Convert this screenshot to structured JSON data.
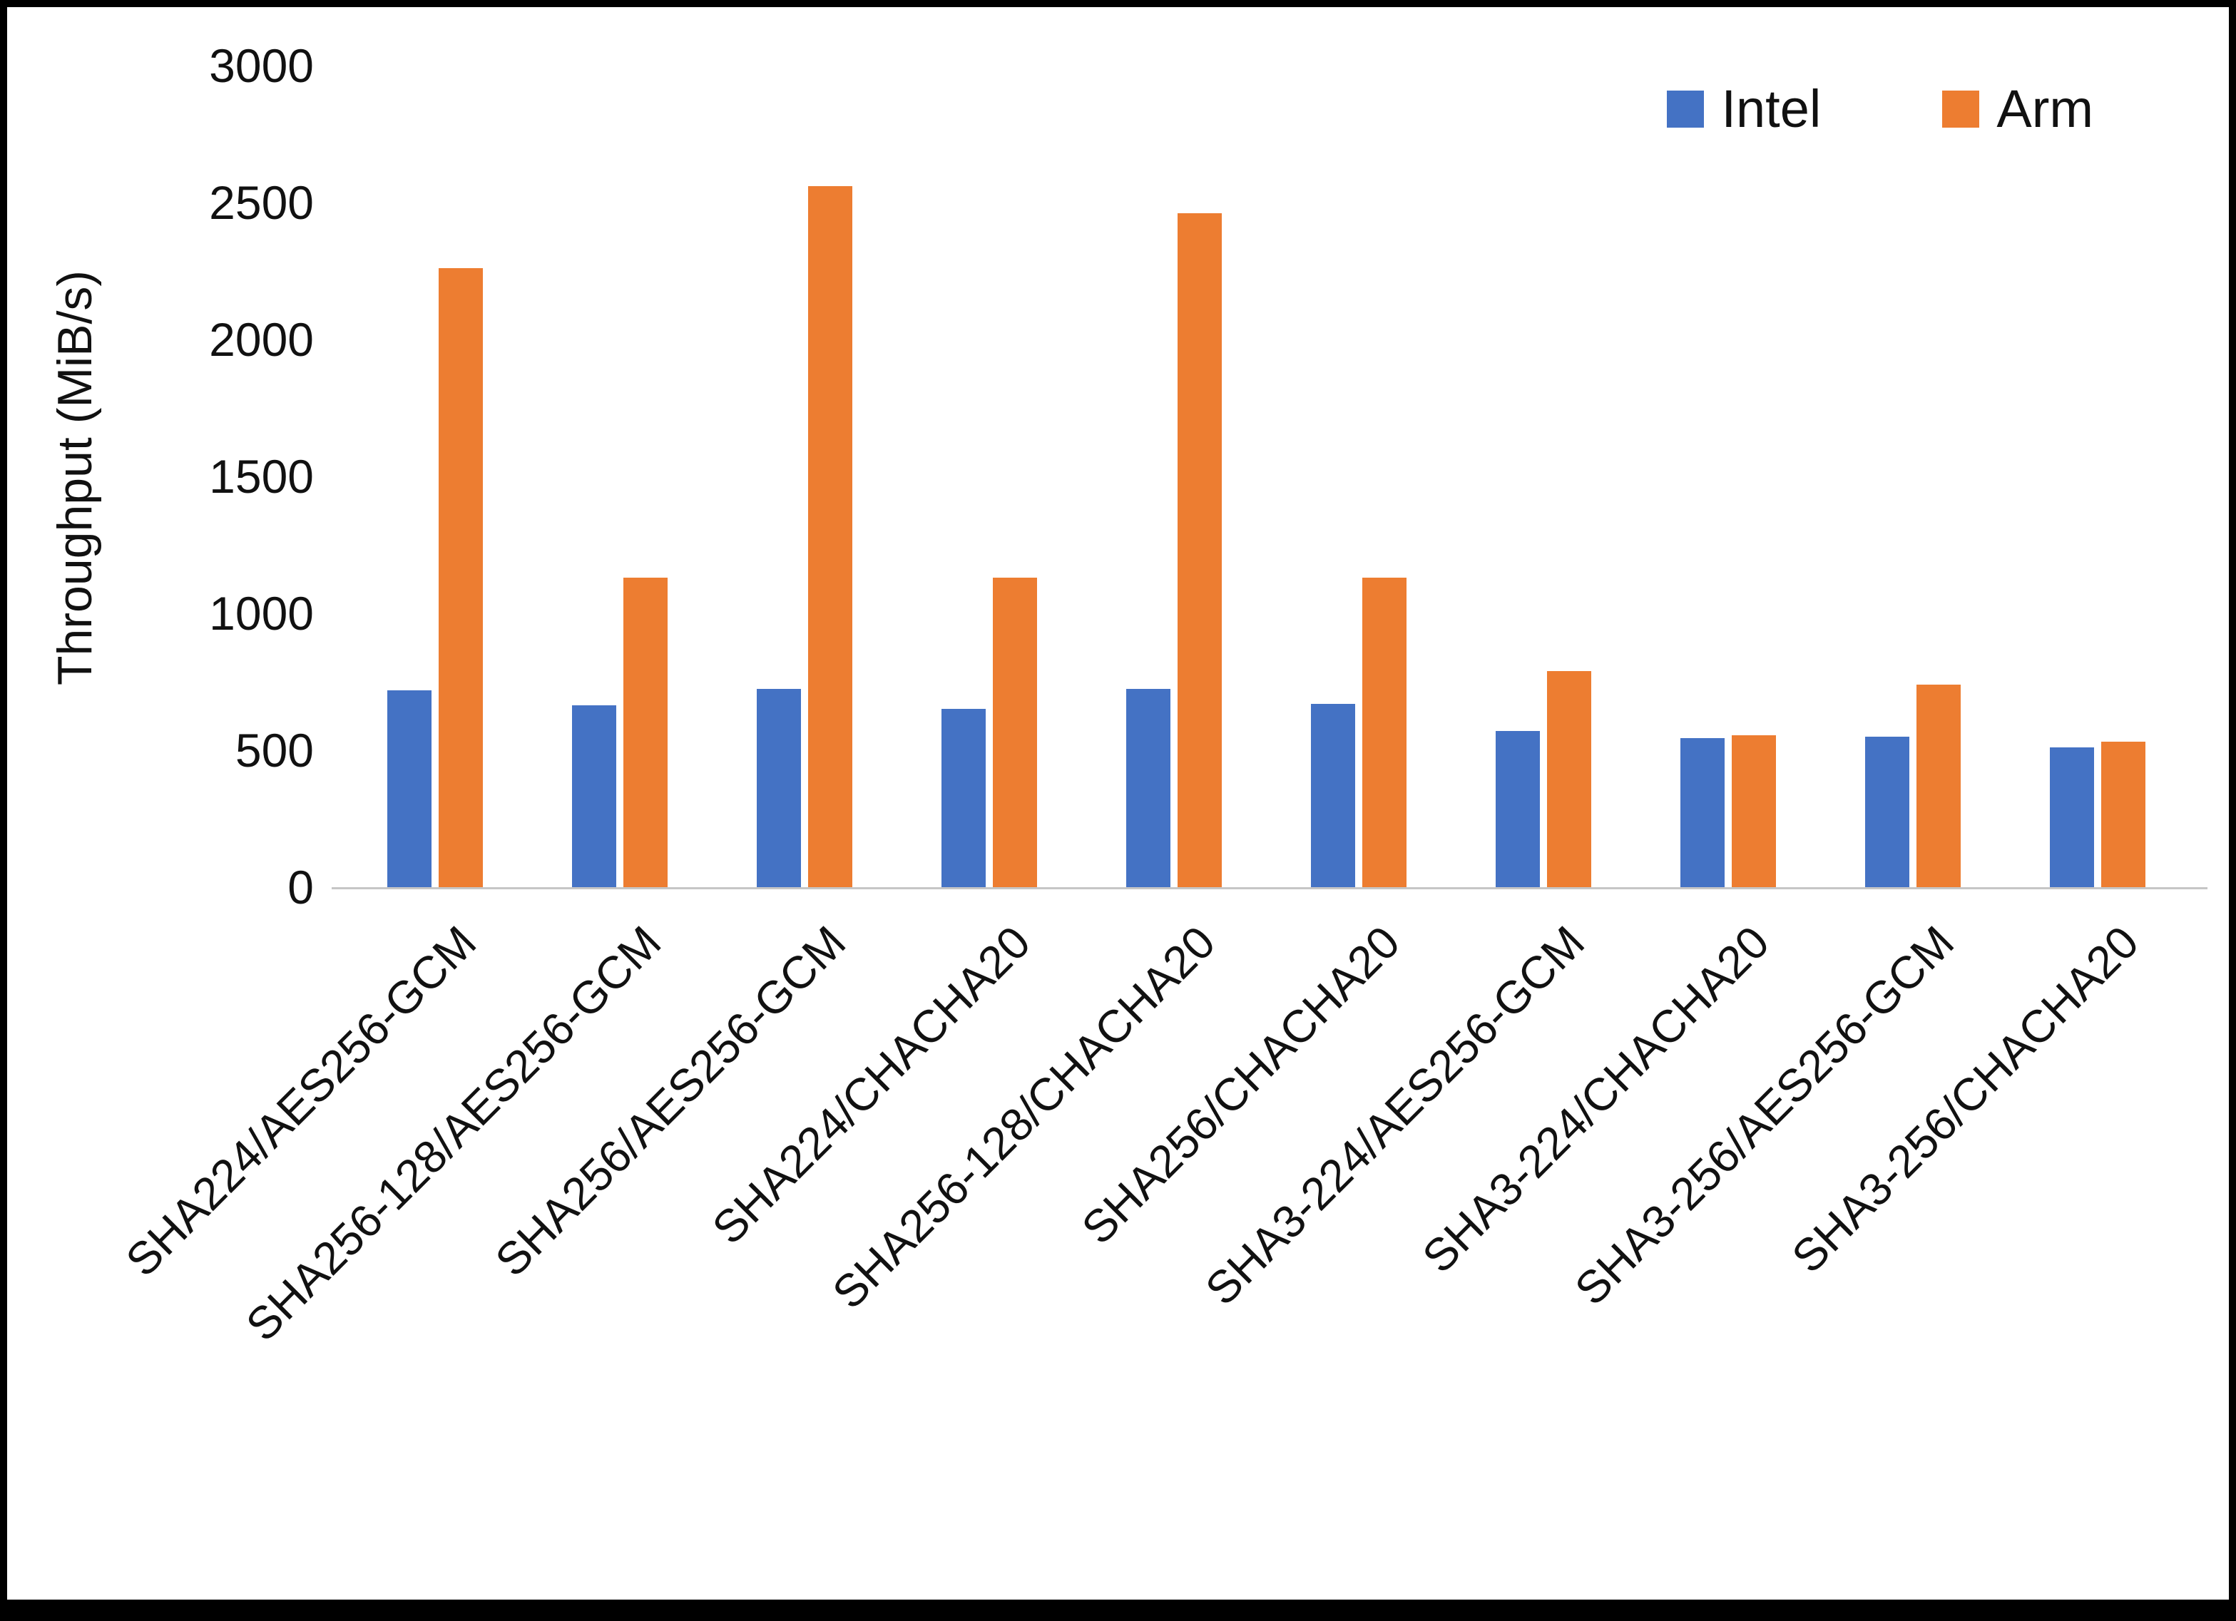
{
  "chart_data": {
    "type": "bar",
    "title": "",
    "xlabel": "",
    "ylabel": "Throughput (MiB/s)",
    "ylim": [
      0,
      3000
    ],
    "yticks": [
      0,
      500,
      1000,
      1500,
      2000,
      2500,
      3000
    ],
    "grid": false,
    "legend_position": "top-right",
    "categories": [
      "SHA224/AES256-GCM",
      "SHA256-128/AES256-GCM",
      "SHA256/AES256-GCM",
      "SHA224/CHACHA20",
      "SHA256-128/CHACHA20",
      "SHA256/CHACHA20",
      "SHA3-224/AES256-GCM",
      "SHA3-224/CHACHA20",
      "SHA3-256/AES256-GCM",
      "SHA3-256/CHACHA20"
    ],
    "series": [
      {
        "name": "Intel",
        "color": "#4472C4",
        "values": [
          720,
          665,
          725,
          650,
          725,
          670,
          570,
          545,
          550,
          510
        ]
      },
      {
        "name": "Arm",
        "color": "#ED7D31",
        "values": [
          2260,
          1130,
          2560,
          1130,
          2460,
          1130,
          790,
          555,
          740,
          530
        ]
      }
    ]
  }
}
